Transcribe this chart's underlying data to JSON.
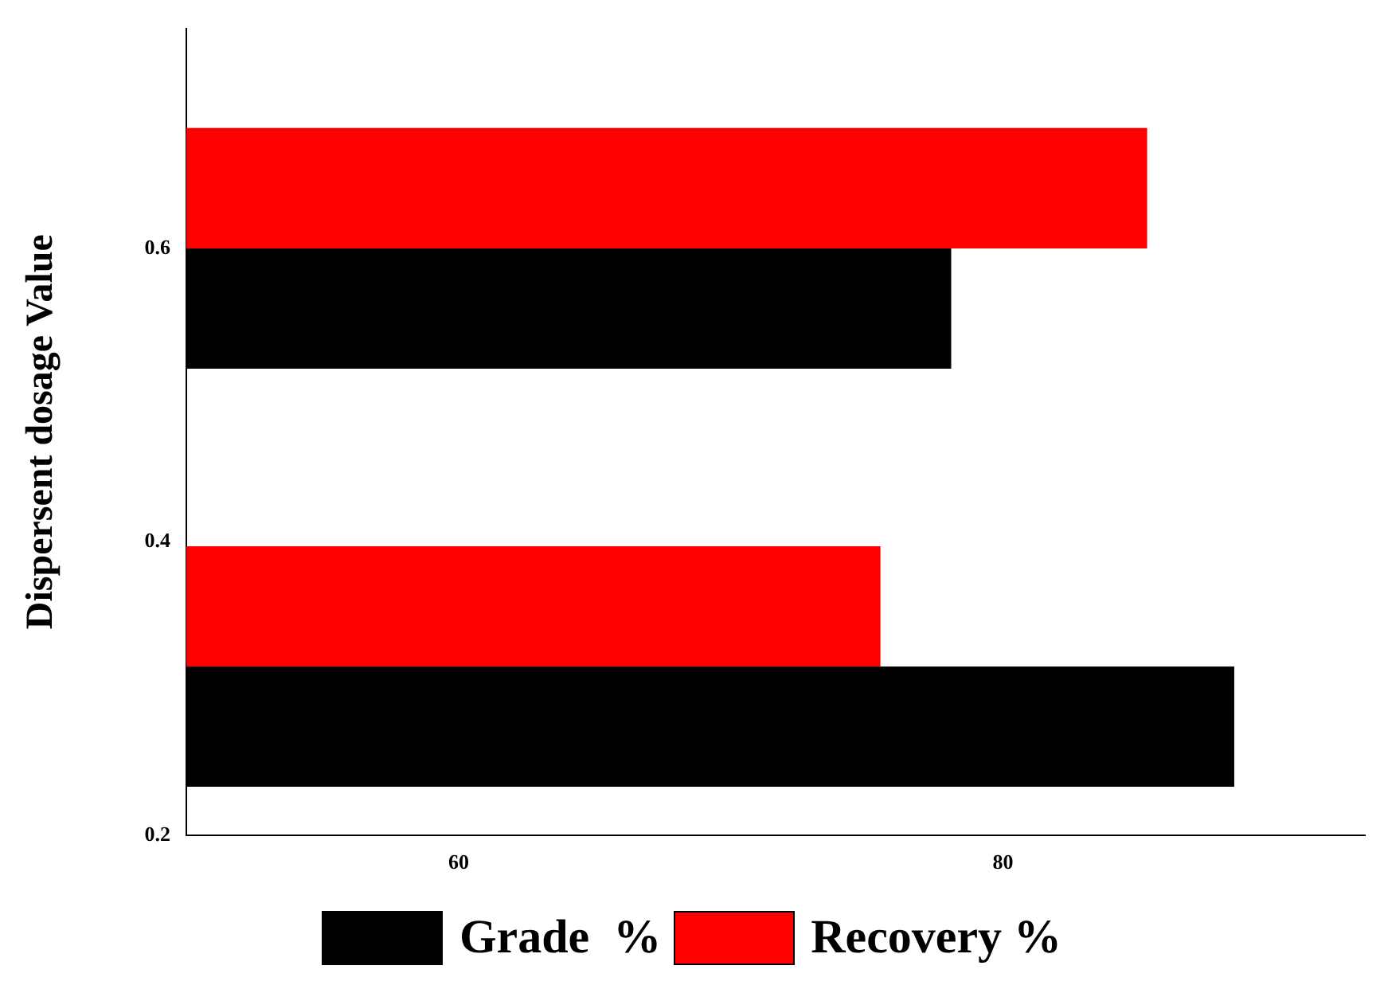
{
  "chart_data": {
    "type": "bar",
    "orientation": "horizontal",
    "ylabel": "Dispersent dosage Value",
    "x": [
      0.315,
      0.6
    ],
    "series": [
      {
        "name": "Grade  %",
        "color": "#000000",
        "values": [
          88.5,
          78.1
        ]
      },
      {
        "name": "Recovery %",
        "color": "#ff0000",
        "values": [
          75.5,
          85.3
        ]
      }
    ],
    "xlim": [
      50,
      93.3
    ],
    "xticks": [
      60,
      80
    ],
    "ylim": [
      0.2,
      0.75
    ],
    "yticks": [
      0.2,
      0.4,
      0.6
    ],
    "grid": false,
    "legend": "bottom"
  }
}
